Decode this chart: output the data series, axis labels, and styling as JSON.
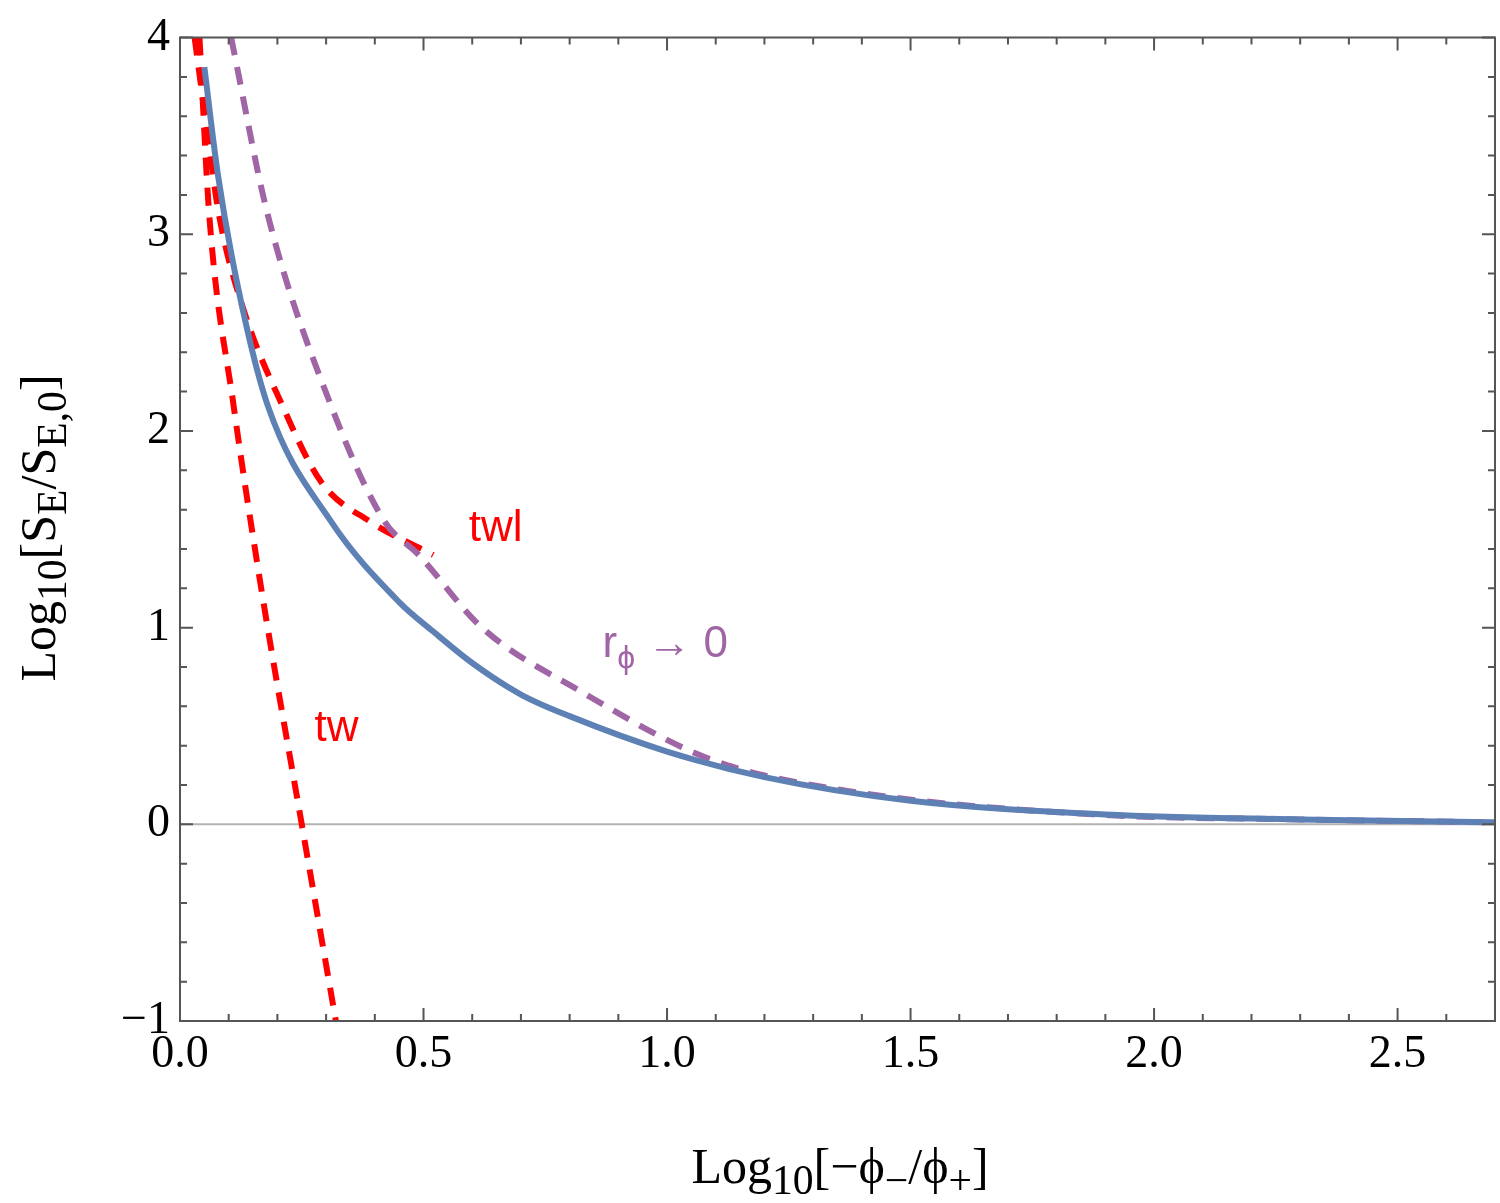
{
  "chart_data": {
    "type": "line",
    "xlabel": "Log$_{10}$[−ϕ$_{−}$/ϕ$_{+}$]",
    "ylabel": "Log$_{10}$[S$_{E}$/S$_{E,0}$]",
    "xlim": [
      0,
      2.7
    ],
    "ylim": [
      -1,
      4
    ],
    "xticks": [
      {
        "value": 0,
        "label": "0.0"
      },
      {
        "value": 0.1,
        "label": null
      },
      {
        "value": 0.2,
        "label": null
      },
      {
        "value": 0.3,
        "label": null
      },
      {
        "value": 0.4,
        "label": null
      },
      {
        "value": 0.5,
        "label": "0.5"
      },
      {
        "value": 0.6,
        "label": null
      },
      {
        "value": 0.7,
        "label": null
      },
      {
        "value": 0.8,
        "label": null
      },
      {
        "value": 0.9,
        "label": null
      },
      {
        "value": 1,
        "label": "1.0"
      },
      {
        "value": 1.1,
        "label": null
      },
      {
        "value": 1.2,
        "label": null
      },
      {
        "value": 1.3,
        "label": null
      },
      {
        "value": 1.4,
        "label": null
      },
      {
        "value": 1.5,
        "label": "1.5"
      },
      {
        "value": 1.6,
        "label": null
      },
      {
        "value": 1.7,
        "label": null
      },
      {
        "value": 1.8,
        "label": null
      },
      {
        "value": 1.9,
        "label": null
      },
      {
        "value": 2,
        "label": "2.0"
      },
      {
        "value": 2.1,
        "label": null
      },
      {
        "value": 2.2,
        "label": null
      },
      {
        "value": 2.3,
        "label": null
      },
      {
        "value": 2.4,
        "label": null
      },
      {
        "value": 2.5,
        "label": "2.5"
      },
      {
        "value": 2.6,
        "label": null
      }
    ],
    "yticks": [
      {
        "value": -1,
        "label": "−1"
      },
      {
        "value": -0.8,
        "label": null
      },
      {
        "value": -0.6,
        "label": null
      },
      {
        "value": -0.4,
        "label": null
      },
      {
        "value": -0.2,
        "label": null
      },
      0,
      {
        "value": 0.2,
        "label": null
      },
      {
        "value": 0.4,
        "label": null
      },
      {
        "value": 0.6,
        "label": null
      },
      {
        "value": 0.8,
        "label": null
      },
      1,
      {
        "value": 1.2,
        "label": null
      },
      {
        "value": 1.4,
        "label": null
      },
      {
        "value": 1.6,
        "label": null
      },
      {
        "value": 1.8,
        "label": null
      },
      2,
      {
        "value": 2.2,
        "label": null
      },
      {
        "value": 2.4,
        "label": null
      },
      {
        "value": 2.6,
        "label": null
      },
      {
        "value": 2.8,
        "label": null
      },
      3,
      {
        "value": 3.2,
        "label": null
      },
      {
        "value": 3.4,
        "label": null
      },
      {
        "value": 3.6,
        "label": null
      },
      {
        "value": 3.8,
        "label": null
      },
      4
    ],
    "grid": false,
    "legend": false,
    "marker": "none",
    "ref_lines": [
      {
        "axis": "y",
        "value": 0,
        "color": "#b3b3b3"
      }
    ],
    "series": [
      {
        "color": "#5e81b5",
        "line_style": "solid",
        "x": [
          0.05,
          0.078,
          0.12,
          0.18,
          0.31,
          0.45,
          0.52,
          0.6,
          0.7,
          0.8,
          1.0,
          1.2,
          1.5,
          1.9,
          2.3,
          2.7
        ],
        "values": [
          3.85,
          3.3,
          2.72,
          2.13,
          1.54,
          1.13,
          0.98,
          0.82,
          0.66,
          0.55,
          0.37,
          0.24,
          0.12,
          0.05,
          0.025,
          0.01
        ]
      },
      {
        "color": "#a065a4",
        "line_style": "dashed",
        "x": [
          0.105,
          0.18,
          0.31,
          0.42,
          0.49,
          0.62,
          0.82,
          1.09,
          1.37,
          1.88,
          2.3,
          2.7
        ],
        "values": [
          4.0,
          3.1,
          2.13,
          1.54,
          1.37,
          1.0,
          0.68,
          0.33,
          0.17,
          0.05,
          0.025,
          0.01
        ]
      },
      {
        "color": "#ff0000",
        "line_style": "dashed",
        "x": [
          0.03,
          0.057,
          0.08,
          0.13,
          0.21,
          0.29,
          0.39,
          0.52
        ],
        "values": [
          4.0,
          3.5,
          3.1,
          2.62,
          2.13,
          1.74,
          1.54,
          1.37
        ]
      },
      {
        "color": "#ff0000",
        "line_style": "dashed",
        "x": [
          0.04,
          0.06,
          0.11,
          0.17,
          0.25,
          0.32
        ],
        "values": [
          4.0,
          3.1,
          2.13,
          1.15,
          0,
          -1.0
        ]
      }
    ],
    "annotations": [
      "twl",
      "r$_{ϕ}$ → 0",
      "tw"
    ]
  }
}
